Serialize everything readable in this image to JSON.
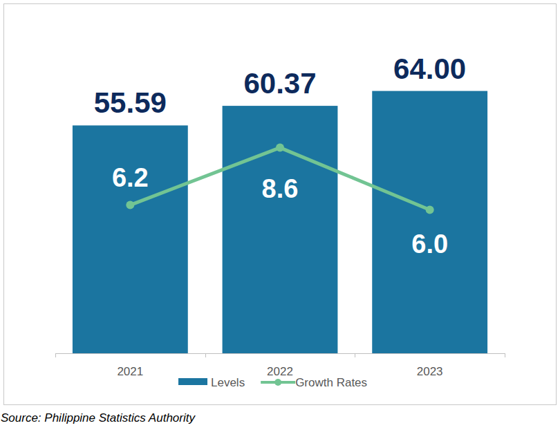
{
  "chart_data": {
    "type": "bar",
    "categories": [
      "2021",
      "2022",
      "2023"
    ],
    "series": [
      {
        "name": "Levels",
        "type": "bar",
        "color": "#1b75a0",
        "values": [
          55.59,
          60.37,
          64.0
        ],
        "value_labels": [
          "55.59",
          "60.37",
          "64.00"
        ]
      },
      {
        "name": "Growth Rates",
        "type": "line",
        "color": "#72c493",
        "marker": "circle",
        "axis": "y2",
        "values": [
          6.2,
          8.6,
          6.0
        ],
        "value_labels": [
          "6.2",
          "8.6",
          "6.0"
        ]
      }
    ],
    "ylim": [
      0,
      70
    ],
    "y2lim": [
      0,
      12
    ],
    "data_labels": true,
    "tick_labels": "x",
    "legend": "bottom",
    "grid": false,
    "source": "Source: Philippine Statistics Authority"
  }
}
